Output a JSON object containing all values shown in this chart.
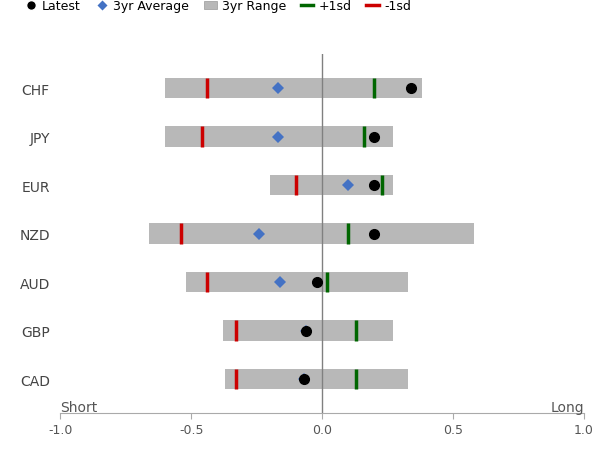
{
  "currencies": [
    "CHF",
    "JPY",
    "EUR",
    "NZD",
    "AUD",
    "GBP",
    "CAD"
  ],
  "range_left": [
    -0.6,
    -0.6,
    -0.2,
    -0.66,
    -0.52,
    -0.38,
    -0.37
  ],
  "range_right": [
    0.38,
    0.27,
    0.27,
    0.58,
    0.33,
    0.27,
    0.33
  ],
  "minus1sd": [
    -0.44,
    -0.46,
    -0.1,
    -0.54,
    -0.44,
    -0.33,
    -0.33
  ],
  "plus1sd": [
    0.2,
    0.16,
    0.23,
    0.1,
    0.02,
    0.13,
    0.13
  ],
  "avg3yr": [
    -0.17,
    -0.17,
    0.1,
    -0.24,
    -0.16,
    -0.06,
    -0.07
  ],
  "latest": [
    0.34,
    0.2,
    0.2,
    0.2,
    -0.02,
    -0.06,
    -0.07
  ],
  "bar_height": 0.42,
  "bar_color": "#b8b8b8",
  "minus1sd_color": "#cc0000",
  "plus1sd_color": "#006600",
  "avg_color": "#4472c4",
  "latest_color": "#000000",
  "xlim": [
    -1.0,
    1.0
  ],
  "xlabel_left": "Short",
  "xlabel_right": "Long",
  "xticks": [
    -1.0,
    -0.5,
    0.0,
    0.5,
    1.0
  ],
  "xtick_labels": [
    "-1.0",
    "-0.5",
    "0.0",
    "0.5",
    "1.0"
  ]
}
